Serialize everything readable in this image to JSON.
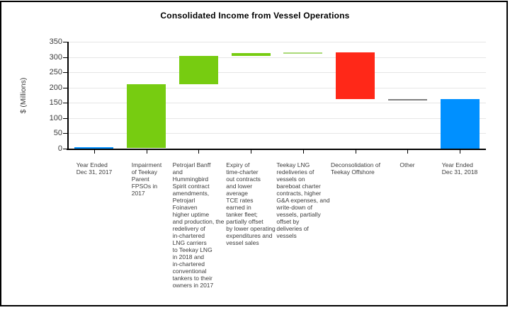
{
  "chart_data": {
    "type": "bar",
    "variant": "waterfall",
    "title": "Consolidated Income from Vessel Operations",
    "xlabel": "",
    "ylabel": "$ (Millions)",
    "ylim": [
      0,
      350
    ],
    "ytick_interval": 50,
    "ytick_labels": [
      "0",
      "50",
      "100",
      "150",
      "200",
      "250",
      "300",
      "350"
    ],
    "grid": "horizontal",
    "legend_position": "none",
    "steps": [
      {
        "category_lines": [
          "Year Ended",
          "Dec 31, 2017"
        ],
        "start": 0,
        "end": 4,
        "delta": 4,
        "role": "absolute-start",
        "color": "#0090FF",
        "color_name": "blue"
      },
      {
        "category_lines": [
          "Impairment",
          "of Teekay",
          "Parent",
          "FPSOs in",
          "2017"
        ],
        "start": 4,
        "end": 212,
        "delta": 208,
        "role": "increase",
        "color": "#77CC11",
        "color_name": "green"
      },
      {
        "category_lines": [
          "Petrojarl Banff",
          "and",
          "Hummingbird",
          "Spirit contract",
          "amendments,",
          "Petrojarl",
          "Foinaven",
          "higher uptime",
          "and production, the",
          "redelivery of",
          "in-chartered",
          "LNG carriers",
          "to Teekay LNG",
          "in 2018 and",
          "in-chartered",
          "conventional",
          "tankers to their",
          "owners in 2017"
        ],
        "start": 212,
        "end": 304,
        "delta": 92,
        "role": "increase",
        "color": "#77CC11",
        "color_name": "green"
      },
      {
        "category_lines": [
          "Expiry of",
          "time-charter",
          "out contracts",
          "and lower",
          "average",
          "TCE rates",
          "earned in",
          "tanker fleet;",
          "partially offset",
          "by lower operating",
          "expenditures and",
          "vessel sales"
        ],
        "start": 304,
        "end": 314,
        "delta": 10,
        "role": "increase",
        "color": "#77CC11",
        "color_name": "green"
      },
      {
        "category_lines": [
          "Teekay LNG",
          "redeliveries of",
          "vessels on",
          "bareboat charter",
          "contracts, higher",
          "G&A expenses, and",
          "write-down of",
          "vessels, partially",
          "offset by",
          "deliveries of",
          "vessels"
        ],
        "start": 314,
        "end": 315,
        "delta": 1,
        "role": "small-change",
        "color": "#AAD978",
        "color_name": "light-green"
      },
      {
        "category_lines": [
          "Deconsolidation of",
          "Teekay Offshore"
        ],
        "start": 315,
        "end": 163,
        "delta": -152,
        "role": "decrease",
        "color": "#FF2818",
        "color_name": "red"
      },
      {
        "category_lines": [
          "Other"
        ],
        "start": 163,
        "end": 163,
        "delta": 0,
        "role": "small-change",
        "color": "#7F7F7F",
        "color_name": "gray"
      },
      {
        "category_lines": [
          "Year Ended",
          "Dec 31, 2018"
        ],
        "start": 0,
        "end": 163,
        "delta": 163,
        "role": "absolute-end",
        "color": "#0090FF",
        "color_name": "blue"
      }
    ]
  }
}
